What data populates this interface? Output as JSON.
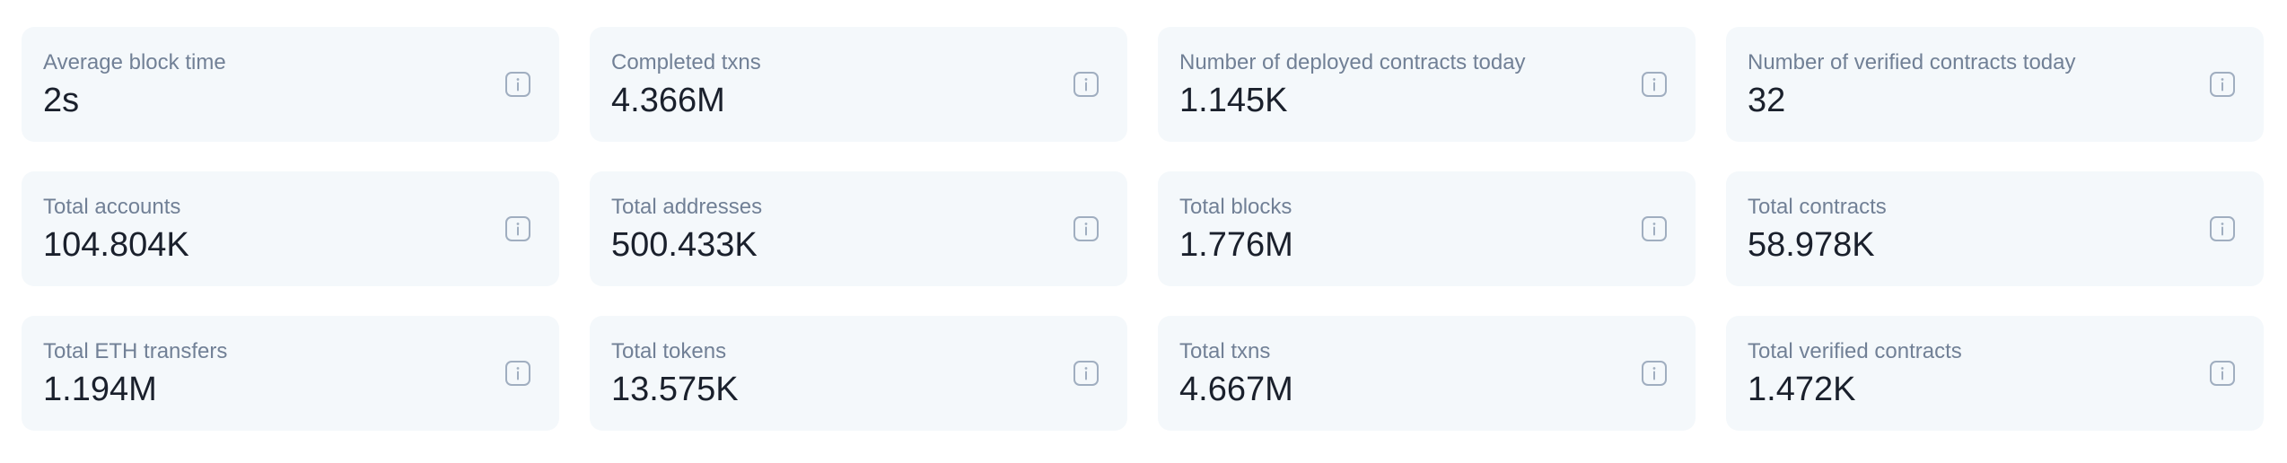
{
  "stats": [
    {
      "label": "Average block time",
      "value": "2s",
      "icon": "info-icon"
    },
    {
      "label": "Completed txns",
      "value": "4.366M",
      "icon": "info-icon"
    },
    {
      "label": "Number of deployed contracts today",
      "value": "1.145K",
      "icon": "info-icon"
    },
    {
      "label": "Number of verified contracts today",
      "value": "32",
      "icon": "info-icon"
    },
    {
      "label": "Total accounts",
      "value": "104.804K",
      "icon": "info-icon"
    },
    {
      "label": "Total addresses",
      "value": "500.433K",
      "icon": "info-icon"
    },
    {
      "label": "Total blocks",
      "value": "1.776M",
      "icon": "info-icon"
    },
    {
      "label": "Total contracts",
      "value": "58.978K",
      "icon": "info-icon"
    },
    {
      "label": "Total ETH transfers",
      "value": "1.194M",
      "icon": "info-icon"
    },
    {
      "label": "Total tokens",
      "value": "13.575K",
      "icon": "info-icon"
    },
    {
      "label": "Total txns",
      "value": "4.667M",
      "icon": "info-icon"
    },
    {
      "label": "Total verified contracts",
      "value": "1.472K",
      "icon": "info-icon"
    }
  ],
  "colors": {
    "card_bg": "#f4f8fb",
    "label": "#718096",
    "value": "#1a202c",
    "icon": "#a0aec0"
  }
}
